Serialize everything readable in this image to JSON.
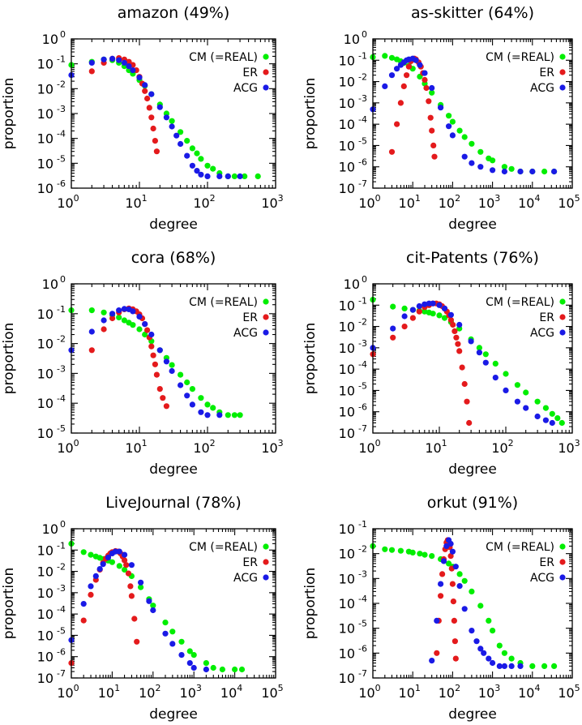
{
  "series_colors": {
    "CM (=REAL)": "#00ee00",
    "ER": "#e41a1c",
    "ACG": "#1a1ae6"
  },
  "chart_data": [
    {
      "type": "scatter",
      "title": "amazon (49%)",
      "xlabel": "degree",
      "ylabel": "proportion",
      "xscale": "log",
      "yscale": "log",
      "xlim": [
        1,
        1000
      ],
      "ylim": [
        1e-06,
        1
      ],
      "x_ticks": [
        "0",
        "1",
        "2",
        "3"
      ],
      "y_ticks": [
        "0",
        "-1",
        "-2",
        "-3",
        "-4",
        "-5",
        "-6"
      ],
      "legend": "top-right",
      "grid": false,
      "series": [
        {
          "name": "CM (=REAL)",
          "x": [
            1,
            2,
            3,
            4,
            5,
            6,
            7,
            8,
            10,
            12,
            15,
            20,
            25,
            30,
            40,
            50,
            60,
            70,
            80,
            100,
            120,
            150,
            200,
            250,
            350,
            550
          ],
          "y": [
            0.09,
            0.12,
            0.15,
            0.14,
            0.11,
            0.08,
            0.055,
            0.04,
            0.022,
            0.013,
            0.006,
            0.0023,
            0.001,
            0.0005,
            0.00018,
            8e-05,
            4e-05,
            2.5e-05,
            1.5e-05,
            8e-06,
            6e-06,
            4e-06,
            3e-06,
            3e-06,
            3e-06,
            3e-06
          ]
        },
        {
          "name": "ER",
          "x": [
            2,
            3,
            4,
            5,
            6,
            7,
            8,
            9,
            10,
            11,
            12,
            13,
            14,
            15,
            16,
            17,
            18
          ],
          "y": [
            0.05,
            0.11,
            0.16,
            0.17,
            0.15,
            0.12,
            0.09,
            0.055,
            0.03,
            0.016,
            0.008,
            0.004,
            0.0017,
            0.0007,
            0.00025,
            8e-05,
            3e-05
          ]
        },
        {
          "name": "ACG",
          "x": [
            1,
            2,
            3,
            4,
            5,
            6,
            7,
            8,
            10,
            12,
            15,
            20,
            25,
            30,
            35,
            40,
            50,
            60,
            70,
            80,
            100,
            150,
            200,
            300
          ],
          "y": [
            0.035,
            0.11,
            0.15,
            0.16,
            0.14,
            0.11,
            0.08,
            0.055,
            0.028,
            0.014,
            0.006,
            0.0018,
            0.0007,
            0.0003,
            0.00013,
            6e-05,
            2e-05,
            8e-06,
            5e-06,
            3.5e-06,
            3e-06,
            3e-06,
            3e-06,
            3e-06
          ]
        }
      ]
    },
    {
      "type": "scatter",
      "title": "as-skitter (64%)",
      "xlabel": "degree",
      "ylabel": "proportion",
      "xscale": "log",
      "yscale": "log",
      "xlim": [
        1,
        100000
      ],
      "ylim": [
        1e-07,
        1
      ],
      "x_ticks": [
        "0",
        "1",
        "2",
        "3",
        "4",
        "5"
      ],
      "y_ticks": [
        "0",
        "-1",
        "-2",
        "-3",
        "-4",
        "-5",
        "-6",
        "-7"
      ],
      "legend": "top-right",
      "grid": false,
      "series": [
        {
          "name": "CM (=REAL)",
          "x": [
            1,
            2,
            3,
            4,
            5,
            6,
            8,
            10,
            15,
            20,
            30,
            50,
            80,
            100,
            150,
            200,
            300,
            500,
            800,
            1000,
            2000,
            3000,
            5000,
            10000,
            20000,
            35000
          ],
          "y": [
            0.14,
            0.16,
            0.13,
            0.11,
            0.09,
            0.075,
            0.055,
            0.04,
            0.017,
            0.008,
            0.003,
            0.0008,
            0.00025,
            0.00013,
            5e-05,
            2.5e-05,
            1.2e-05,
            5e-06,
            2.5e-06,
            2e-06,
            1e-06,
            8e-07,
            6e-07,
            6e-07,
            6e-07,
            6e-07
          ]
        },
        {
          "name": "ER",
          "x": [
            3,
            4,
            5,
            6,
            7,
            8,
            9,
            10,
            11,
            12,
            14,
            16,
            18,
            20,
            22,
            25,
            28,
            30,
            33,
            35
          ],
          "y": [
            5e-06,
            0.0001,
            0.001,
            0.006,
            0.02,
            0.05,
            0.09,
            0.11,
            0.12,
            0.11,
            0.08,
            0.05,
            0.025,
            0.012,
            0.005,
            0.0012,
            0.0002,
            5e-05,
            1e-05,
            3e-06
          ]
        },
        {
          "name": "ACG",
          "x": [
            1,
            2,
            3,
            4,
            5,
            6,
            7,
            8,
            10,
            12,
            15,
            20,
            30,
            50,
            80,
            100,
            200,
            300,
            500,
            1000,
            2000,
            5000,
            10000,
            35000
          ],
          "y": [
            0.0005,
            0.006,
            0.02,
            0.04,
            0.06,
            0.08,
            0.1,
            0.11,
            0.12,
            0.1,
            0.06,
            0.025,
            0.005,
            0.0006,
            8e-05,
            3e-05,
            3e-06,
            1.5e-06,
            1e-06,
            7e-07,
            6e-07,
            6e-07,
            6e-07,
            6e-07
          ]
        }
      ]
    },
    {
      "type": "scatter",
      "title": "cora (68%)",
      "xlabel": "degree",
      "ylabel": "proportion",
      "xscale": "log",
      "yscale": "log",
      "xlim": [
        1,
        1000
      ],
      "ylim": [
        1e-05,
        1
      ],
      "x_ticks": [
        "0",
        "1",
        "2",
        "3"
      ],
      "y_ticks": [
        "0",
        "-1",
        "-2",
        "-3",
        "-4",
        "-5"
      ],
      "legend": "top-right",
      "grid": false,
      "series": [
        {
          "name": "CM (=REAL)",
          "x": [
            1,
            2,
            3,
            4,
            5,
            6,
            7,
            8,
            10,
            12,
            15,
            20,
            25,
            30,
            40,
            50,
            60,
            80,
            100,
            120,
            150,
            200,
            250,
            300
          ],
          "y": [
            0.13,
            0.13,
            0.11,
            0.09,
            0.075,
            0.06,
            0.05,
            0.042,
            0.03,
            0.02,
            0.012,
            0.006,
            0.0033,
            0.0019,
            0.0009,
            0.0005,
            0.0003,
            0.00015,
            9e-05,
            7e-05,
            5e-05,
            4e-05,
            4e-05,
            4e-05
          ]
        },
        {
          "name": "ER",
          "x": [
            2,
            3,
            4,
            5,
            6,
            7,
            8,
            9,
            10,
            11,
            12,
            13,
            14,
            15,
            16,
            17,
            18,
            20,
            22,
            25
          ],
          "y": [
            0.006,
            0.03,
            0.07,
            0.11,
            0.14,
            0.15,
            0.14,
            0.12,
            0.095,
            0.07,
            0.045,
            0.028,
            0.016,
            0.008,
            0.004,
            0.002,
            0.0009,
            0.0003,
            0.00015,
            8e-05
          ]
        },
        {
          "name": "ACG",
          "x": [
            1,
            2,
            3,
            4,
            5,
            6,
            7,
            8,
            10,
            12,
            15,
            20,
            25,
            30,
            40,
            50,
            60,
            80,
            100,
            150
          ],
          "y": [
            0.006,
            0.025,
            0.06,
            0.1,
            0.13,
            0.145,
            0.14,
            0.12,
            0.08,
            0.045,
            0.02,
            0.006,
            0.0025,
            0.0012,
            0.0004,
            0.00018,
            9e-05,
            5e-05,
            4e-05,
            4e-05
          ]
        }
      ]
    },
    {
      "type": "scatter",
      "title": "cit-Patents (76%)",
      "xlabel": "degree",
      "ylabel": "proportion",
      "xscale": "log",
      "yscale": "log",
      "xlim": [
        1,
        1000
      ],
      "ylim": [
        1e-07,
        1
      ],
      "x_ticks": [
        "0",
        "1",
        "2",
        "3"
      ],
      "y_ticks": [
        "0",
        "-1",
        "-2",
        "-3",
        "-4",
        "-5",
        "-6",
        "-7"
      ],
      "legend": "top-right",
      "grid": false,
      "series": [
        {
          "name": "CM (=REAL)",
          "x": [
            1,
            2,
            3,
            4,
            5,
            6,
            7,
            8,
            10,
            12,
            15,
            20,
            30,
            40,
            50,
            70,
            100,
            150,
            200,
            300,
            400,
            500,
            600,
            700
          ],
          "y": [
            0.18,
            0.085,
            0.07,
            0.06,
            0.055,
            0.05,
            0.045,
            0.04,
            0.033,
            0.025,
            0.016,
            0.008,
            0.0025,
            0.001,
            0.0005,
            0.00018,
            6e-05,
            1.8e-05,
            8e-06,
            3e-06,
            1.5e-06,
            8e-07,
            5e-07,
            3e-07
          ]
        },
        {
          "name": "ER",
          "x": [
            1,
            2,
            3,
            4,
            5,
            6,
            7,
            8,
            9,
            10,
            11,
            12,
            13,
            14,
            15,
            16,
            17,
            18,
            19,
            20,
            22,
            24,
            26,
            28
          ],
          "y": [
            0.0005,
            0.003,
            0.01,
            0.025,
            0.05,
            0.08,
            0.1,
            0.12,
            0.12,
            0.11,
            0.09,
            0.07,
            0.05,
            0.033,
            0.02,
            0.012,
            0.006,
            0.003,
            0.0015,
            0.0007,
            0.00012,
            2e-05,
            3e-06,
            3e-07
          ]
        },
        {
          "name": "ACG",
          "x": [
            1,
            2,
            3,
            4,
            5,
            6,
            7,
            8,
            10,
            12,
            15,
            20,
            30,
            40,
            50,
            70,
            100,
            150,
            200,
            300,
            400,
            500
          ],
          "y": [
            0.001,
            0.008,
            0.03,
            0.06,
            0.09,
            0.11,
            0.12,
            0.12,
            0.1,
            0.07,
            0.035,
            0.012,
            0.002,
            0.0006,
            0.0002,
            4e-05,
            1e-05,
            3e-06,
            1.5e-06,
            6e-07,
            4e-07,
            3e-07
          ]
        }
      ]
    },
    {
      "type": "scatter",
      "title": "LiveJournal (78%)",
      "xlabel": "degree",
      "ylabel": "proportion",
      "xscale": "log",
      "yscale": "log",
      "xlim": [
        1,
        100000
      ],
      "ylim": [
        1e-07,
        1
      ],
      "x_ticks": [
        "0",
        "1",
        "2",
        "3",
        "4",
        "5"
      ],
      "y_ticks": [
        "0",
        "-1",
        "-2",
        "-3",
        "-4",
        "-5",
        "-6",
        "-7"
      ],
      "legend": "top-right",
      "grid": false,
      "series": [
        {
          "name": "CM (=REAL)",
          "x": [
            1,
            2,
            3,
            4,
            5,
            6,
            8,
            10,
            15,
            20,
            30,
            50,
            80,
            100,
            200,
            300,
            500,
            800,
            1000,
            2000,
            3000,
            5000,
            10000,
            15000
          ],
          "y": [
            0.2,
            0.08,
            0.06,
            0.05,
            0.043,
            0.038,
            0.032,
            0.027,
            0.018,
            0.012,
            0.006,
            0.0018,
            0.0005,
            0.00025,
            4e-05,
            1.5e-05,
            5e-06,
            1.8e-06,
            1.2e-06,
            5e-07,
            3e-07,
            2.5e-07,
            2.5e-07,
            2.5e-07
          ]
        },
        {
          "name": "ER",
          "x": [
            1,
            2,
            3,
            4,
            5,
            6,
            7,
            8,
            9,
            10,
            12,
            14,
            16,
            18,
            20,
            22,
            25,
            28,
            30,
            35,
            40
          ],
          "y": [
            5e-07,
            5e-05,
            0.0008,
            0.004,
            0.012,
            0.025,
            0.04,
            0.055,
            0.07,
            0.08,
            0.09,
            0.085,
            0.07,
            0.05,
            0.033,
            0.02,
            0.008,
            0.002,
            0.0007,
            6e-05,
            5e-06
          ]
        },
        {
          "name": "ACG",
          "x": [
            1,
            2,
            3,
            4,
            5,
            6,
            8,
            10,
            12,
            15,
            20,
            30,
            50,
            80,
            100,
            200,
            300,
            500,
            800,
            1000,
            2000
          ],
          "y": [
            6e-06,
            0.0003,
            0.002,
            0.006,
            0.013,
            0.022,
            0.045,
            0.07,
            0.085,
            0.085,
            0.06,
            0.02,
            0.003,
            0.0004,
            0.00015,
            1.2e-05,
            4e-06,
            1.2e-06,
            5e-07,
            3e-07,
            2.5e-07
          ]
        }
      ]
    },
    {
      "type": "scatter",
      "title": "orkut (91%)",
      "xlabel": "degree",
      "ylabel": "proportion",
      "xscale": "log",
      "yscale": "log",
      "xlim": [
        1,
        100000
      ],
      "ylim": [
        1e-07,
        0.1
      ],
      "x_ticks": [
        "0",
        "1",
        "2",
        "3",
        "4",
        "5"
      ],
      "y_ticks": [
        "-1",
        "-2",
        "-3",
        "-4",
        "-5",
        "-6",
        "-7"
      ],
      "legend": "top-right",
      "grid": false,
      "series": [
        {
          "name": "CM (=REAL)",
          "x": [
            1,
            2,
            3,
            5,
            8,
            10,
            15,
            20,
            30,
            50,
            80,
            100,
            150,
            200,
            300,
            500,
            800,
            1000,
            1500,
            2000,
            3000,
            5000,
            10000,
            20000,
            35000
          ],
          "y": [
            0.02,
            0.015,
            0.014,
            0.013,
            0.012,
            0.011,
            0.01,
            0.009,
            0.008,
            0.006,
            0.004,
            0.003,
            0.0015,
            0.0008,
            0.0003,
            8e-05,
            2e-05,
            8e-06,
            2e-06,
            1e-06,
            6e-07,
            4e-07,
            3e-07,
            3e-07,
            3e-07
          ]
        },
        {
          "name": "ER",
          "x": [
            40,
            45,
            50,
            55,
            60,
            65,
            70,
            75,
            80,
            85,
            90,
            95,
            100,
            105,
            110,
            115,
            120
          ],
          "y": [
            1e-06,
            2e-05,
            0.0002,
            0.0015,
            0.006,
            0.015,
            0.028,
            0.035,
            0.03,
            0.018,
            0.008,
            0.0025,
            0.0006,
            0.00012,
            2e-05,
            3e-06,
            6e-07
          ]
        },
        {
          "name": "ACG",
          "x": [
            30,
            40,
            50,
            60,
            70,
            80,
            90,
            100,
            120,
            150,
            200,
            300,
            400,
            500,
            600,
            800,
            1000,
            1500,
            2000,
            3000,
            5000
          ],
          "y": [
            5e-07,
            2e-05,
            0.0006,
            0.005,
            0.02,
            0.035,
            0.025,
            0.012,
            0.003,
            0.0005,
            6e-05,
            8e-06,
            3e-06,
            1.5e-06,
            1e-06,
            6e-07,
            4e-07,
            3e-07,
            3e-07,
            3e-07,
            3e-07
          ]
        }
      ]
    }
  ]
}
